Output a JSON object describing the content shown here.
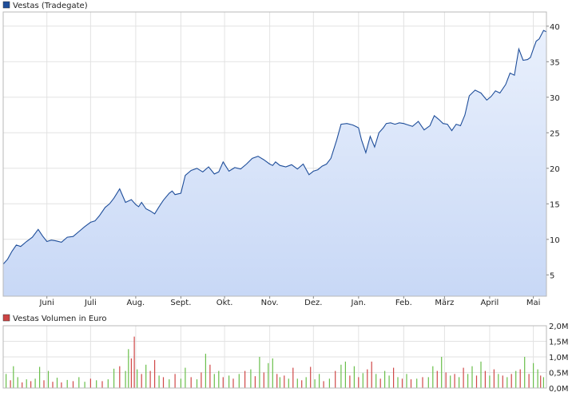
{
  "chart_data": [
    {
      "type": "area",
      "legend": "Vestas (Tradegate)",
      "legend_color": "#1f4e9a",
      "line_color": "#1f4e9a",
      "fill_color_top": "#e9f0fc",
      "fill_color_bottom": "#c8d8f6",
      "grid": true,
      "ylim": [
        2,
        42
      ],
      "yticks": [
        5,
        10,
        15,
        20,
        25,
        30,
        35,
        40
      ],
      "ytick_labels": [
        "5",
        "10",
        "15",
        "20",
        "25",
        "30",
        "35",
        "40"
      ],
      "xlim": [
        0,
        373
      ],
      "xticks": [
        {
          "t": 30,
          "label": "Juni"
        },
        {
          "t": 60,
          "label": "Juli"
        },
        {
          "t": 91,
          "label": "Aug."
        },
        {
          "t": 122,
          "label": "Sept."
        },
        {
          "t": 152,
          "label": "Okt."
        },
        {
          "t": 183,
          "label": "Nov."
        },
        {
          "t": 213,
          "label": "Dez."
        },
        {
          "t": 244,
          "label": "Jan."
        },
        {
          "t": 275,
          "label": "Feb."
        },
        {
          "t": 303,
          "label": "März"
        },
        {
          "t": 334,
          "label": "April"
        },
        {
          "t": 364,
          "label": "Mai"
        }
      ],
      "x": [
        0,
        3,
        6,
        9,
        12,
        16,
        20,
        24,
        27,
        30,
        33,
        36,
        40,
        44,
        48,
        52,
        56,
        60,
        63,
        66,
        70,
        73,
        76,
        80,
        84,
        88,
        91,
        93,
        95,
        98,
        101,
        104,
        107,
        110,
        114,
        116,
        118,
        122,
        125,
        129,
        133,
        137,
        141,
        145,
        148,
        151,
        155,
        159,
        163,
        167,
        171,
        175,
        179,
        183,
        185,
        187,
        190,
        194,
        198,
        202,
        206,
        210,
        213,
        216,
        219,
        222,
        225,
        229,
        232,
        236,
        240,
        242,
        244,
        246,
        249,
        252,
        255,
        258,
        261,
        263,
        266,
        269,
        272,
        275,
        278,
        281,
        285,
        289,
        293,
        296,
        299,
        302,
        305,
        308,
        311,
        314,
        317,
        320,
        324,
        328,
        332,
        335,
        338,
        341,
        345,
        348,
        351,
        354,
        357,
        360,
        362,
        364,
        366,
        368,
        371,
        373
      ],
      "y": [
        6.5,
        7.2,
        8.3,
        9.2,
        9.0,
        9.7,
        10.3,
        11.4,
        10.5,
        9.7,
        9.9,
        9.8,
        9.6,
        10.3,
        10.4,
        11.1,
        11.8,
        12.4,
        12.6,
        13.3,
        14.5,
        15.0,
        15.8,
        17.1,
        15.2,
        15.6,
        14.9,
        14.6,
        15.2,
        14.3,
        14.0,
        13.6,
        14.6,
        15.5,
        16.5,
        16.8,
        16.3,
        16.5,
        19.0,
        19.7,
        20.0,
        19.5,
        20.2,
        19.2,
        19.5,
        20.9,
        19.6,
        20.1,
        19.9,
        20.6,
        21.4,
        21.7,
        21.2,
        20.6,
        20.4,
        20.9,
        20.4,
        20.2,
        20.5,
        19.9,
        20.6,
        19.1,
        19.6,
        19.8,
        20.3,
        20.6,
        21.4,
        24.0,
        26.2,
        26.3,
        26.1,
        25.9,
        25.7,
        24.0,
        22.2,
        24.5,
        23.0,
        25.0,
        25.7,
        26.3,
        26.4,
        26.2,
        26.4,
        26.3,
        26.1,
        25.9,
        26.6,
        25.4,
        26.0,
        27.4,
        26.9,
        26.3,
        26.2,
        25.3,
        26.2,
        26.0,
        27.5,
        30.2,
        31.0,
        30.6,
        29.6,
        30.1,
        30.9,
        30.6,
        31.8,
        33.4,
        33.1,
        36.8,
        35.2,
        35.3,
        35.6,
        36.8,
        37.9,
        38.2,
        39.4,
        39.2
      ]
    },
    {
      "type": "bar",
      "legend": "Vestas Volumen in Euro",
      "legend_color": "#cc4444",
      "up_color": "#6abf4b",
      "down_color": "#d04848",
      "grid": true,
      "ylim": [
        0,
        2.0
      ],
      "yticks": [
        0,
        0.5,
        1.0,
        1.5,
        2.0
      ],
      "ytick_labels": [
        "0,0M",
        "0,5M",
        "1,0M",
        "1,5M",
        "2,0M"
      ],
      "note_unit": "Mio. Euro",
      "bars": [
        [
          2,
          0.45,
          "g"
        ],
        [
          5,
          0.25,
          "r"
        ],
        [
          7,
          0.7,
          "g"
        ],
        [
          10,
          0.35,
          "g"
        ],
        [
          13,
          0.18,
          "r"
        ],
        [
          16,
          0.28,
          "g"
        ],
        [
          19,
          0.22,
          "r"
        ],
        [
          22,
          0.3,
          "g"
        ],
        [
          25,
          0.68,
          "g"
        ],
        [
          28,
          0.25,
          "r"
        ],
        [
          31,
          0.55,
          "g"
        ],
        [
          34,
          0.2,
          "r"
        ],
        [
          37,
          0.33,
          "g"
        ],
        [
          40,
          0.18,
          "r"
        ],
        [
          44,
          0.26,
          "g"
        ],
        [
          48,
          0.22,
          "r"
        ],
        [
          52,
          0.35,
          "g"
        ],
        [
          56,
          0.2,
          "g"
        ],
        [
          60,
          0.3,
          "r"
        ],
        [
          64,
          0.25,
          "g"
        ],
        [
          68,
          0.22,
          "r"
        ],
        [
          72,
          0.28,
          "g"
        ],
        [
          76,
          0.62,
          "g"
        ],
        [
          80,
          0.7,
          "r"
        ],
        [
          84,
          0.55,
          "g"
        ],
        [
          86,
          1.25,
          "g"
        ],
        [
          88,
          0.95,
          "r"
        ],
        [
          90,
          1.65,
          "r"
        ],
        [
          92,
          0.6,
          "g"
        ],
        [
          95,
          0.45,
          "r"
        ],
        [
          98,
          0.75,
          "g"
        ],
        [
          101,
          0.55,
          "r"
        ],
        [
          104,
          0.9,
          "r"
        ],
        [
          107,
          0.4,
          "g"
        ],
        [
          110,
          0.35,
          "r"
        ],
        [
          114,
          0.28,
          "g"
        ],
        [
          118,
          0.45,
          "r"
        ],
        [
          122,
          0.3,
          "g"
        ],
        [
          125,
          0.65,
          "g"
        ],
        [
          129,
          0.35,
          "r"
        ],
        [
          133,
          0.28,
          "g"
        ],
        [
          136,
          0.5,
          "r"
        ],
        [
          139,
          1.1,
          "g"
        ],
        [
          142,
          0.75,
          "r"
        ],
        [
          145,
          0.45,
          "g"
        ],
        [
          148,
          0.55,
          "g"
        ],
        [
          151,
          0.35,
          "r"
        ],
        [
          155,
          0.4,
          "g"
        ],
        [
          158,
          0.3,
          "r"
        ],
        [
          162,
          0.45,
          "g"
        ],
        [
          166,
          0.55,
          "r"
        ],
        [
          170,
          0.6,
          "g"
        ],
        [
          173,
          0.38,
          "r"
        ],
        [
          176,
          1.0,
          "g"
        ],
        [
          179,
          0.5,
          "r"
        ],
        [
          182,
          0.8,
          "g"
        ],
        [
          185,
          0.95,
          "g"
        ],
        [
          188,
          0.45,
          "r"
        ],
        [
          190,
          0.35,
          "g"
        ],
        [
          193,
          0.4,
          "r"
        ],
        [
          196,
          0.3,
          "g"
        ],
        [
          199,
          0.65,
          "r"
        ],
        [
          202,
          0.3,
          "g"
        ],
        [
          205,
          0.25,
          "r"
        ],
        [
          208,
          0.35,
          "g"
        ],
        [
          211,
          0.68,
          "r"
        ],
        [
          214,
          0.28,
          "g"
        ],
        [
          217,
          0.45,
          "g"
        ],
        [
          220,
          0.22,
          "r"
        ],
        [
          224,
          0.3,
          "g"
        ],
        [
          228,
          0.55,
          "r"
        ],
        [
          232,
          0.75,
          "g"
        ],
        [
          235,
          0.85,
          "g"
        ],
        [
          238,
          0.4,
          "r"
        ],
        [
          241,
          0.7,
          "g"
        ],
        [
          244,
          0.35,
          "r"
        ],
        [
          247,
          0.48,
          "g"
        ],
        [
          250,
          0.6,
          "r"
        ],
        [
          253,
          0.85,
          "r"
        ],
        [
          256,
          0.45,
          "g"
        ],
        [
          259,
          0.3,
          "r"
        ],
        [
          262,
          0.55,
          "g"
        ],
        [
          265,
          0.4,
          "g"
        ],
        [
          268,
          0.65,
          "r"
        ],
        [
          271,
          0.35,
          "g"
        ],
        [
          274,
          0.3,
          "r"
        ],
        [
          277,
          0.45,
          "g"
        ],
        [
          280,
          0.28,
          "r"
        ],
        [
          284,
          0.3,
          "g"
        ],
        [
          288,
          0.35,
          "r"
        ],
        [
          292,
          0.35,
          "g"
        ],
        [
          295,
          0.7,
          "g"
        ],
        [
          298,
          0.55,
          "r"
        ],
        [
          301,
          1.0,
          "g"
        ],
        [
          304,
          0.5,
          "r"
        ],
        [
          307,
          0.4,
          "g"
        ],
        [
          310,
          0.45,
          "r"
        ],
        [
          313,
          0.35,
          "g"
        ],
        [
          316,
          0.65,
          "r"
        ],
        [
          319,
          0.45,
          "g"
        ],
        [
          322,
          0.7,
          "g"
        ],
        [
          325,
          0.4,
          "r"
        ],
        [
          328,
          0.85,
          "g"
        ],
        [
          331,
          0.55,
          "r"
        ],
        [
          334,
          0.4,
          "g"
        ],
        [
          337,
          0.6,
          "r"
        ],
        [
          340,
          0.45,
          "g"
        ],
        [
          343,
          0.4,
          "r"
        ],
        [
          346,
          0.35,
          "g"
        ],
        [
          349,
          0.45,
          "r"
        ],
        [
          352,
          0.55,
          "g"
        ],
        [
          355,
          0.6,
          "r"
        ],
        [
          358,
          1.0,
          "g"
        ],
        [
          361,
          0.45,
          "r"
        ],
        [
          364,
          0.8,
          "g"
        ],
        [
          367,
          0.6,
          "g"
        ],
        [
          369,
          0.4,
          "r"
        ],
        [
          371,
          0.35,
          "g"
        ]
      ]
    }
  ]
}
